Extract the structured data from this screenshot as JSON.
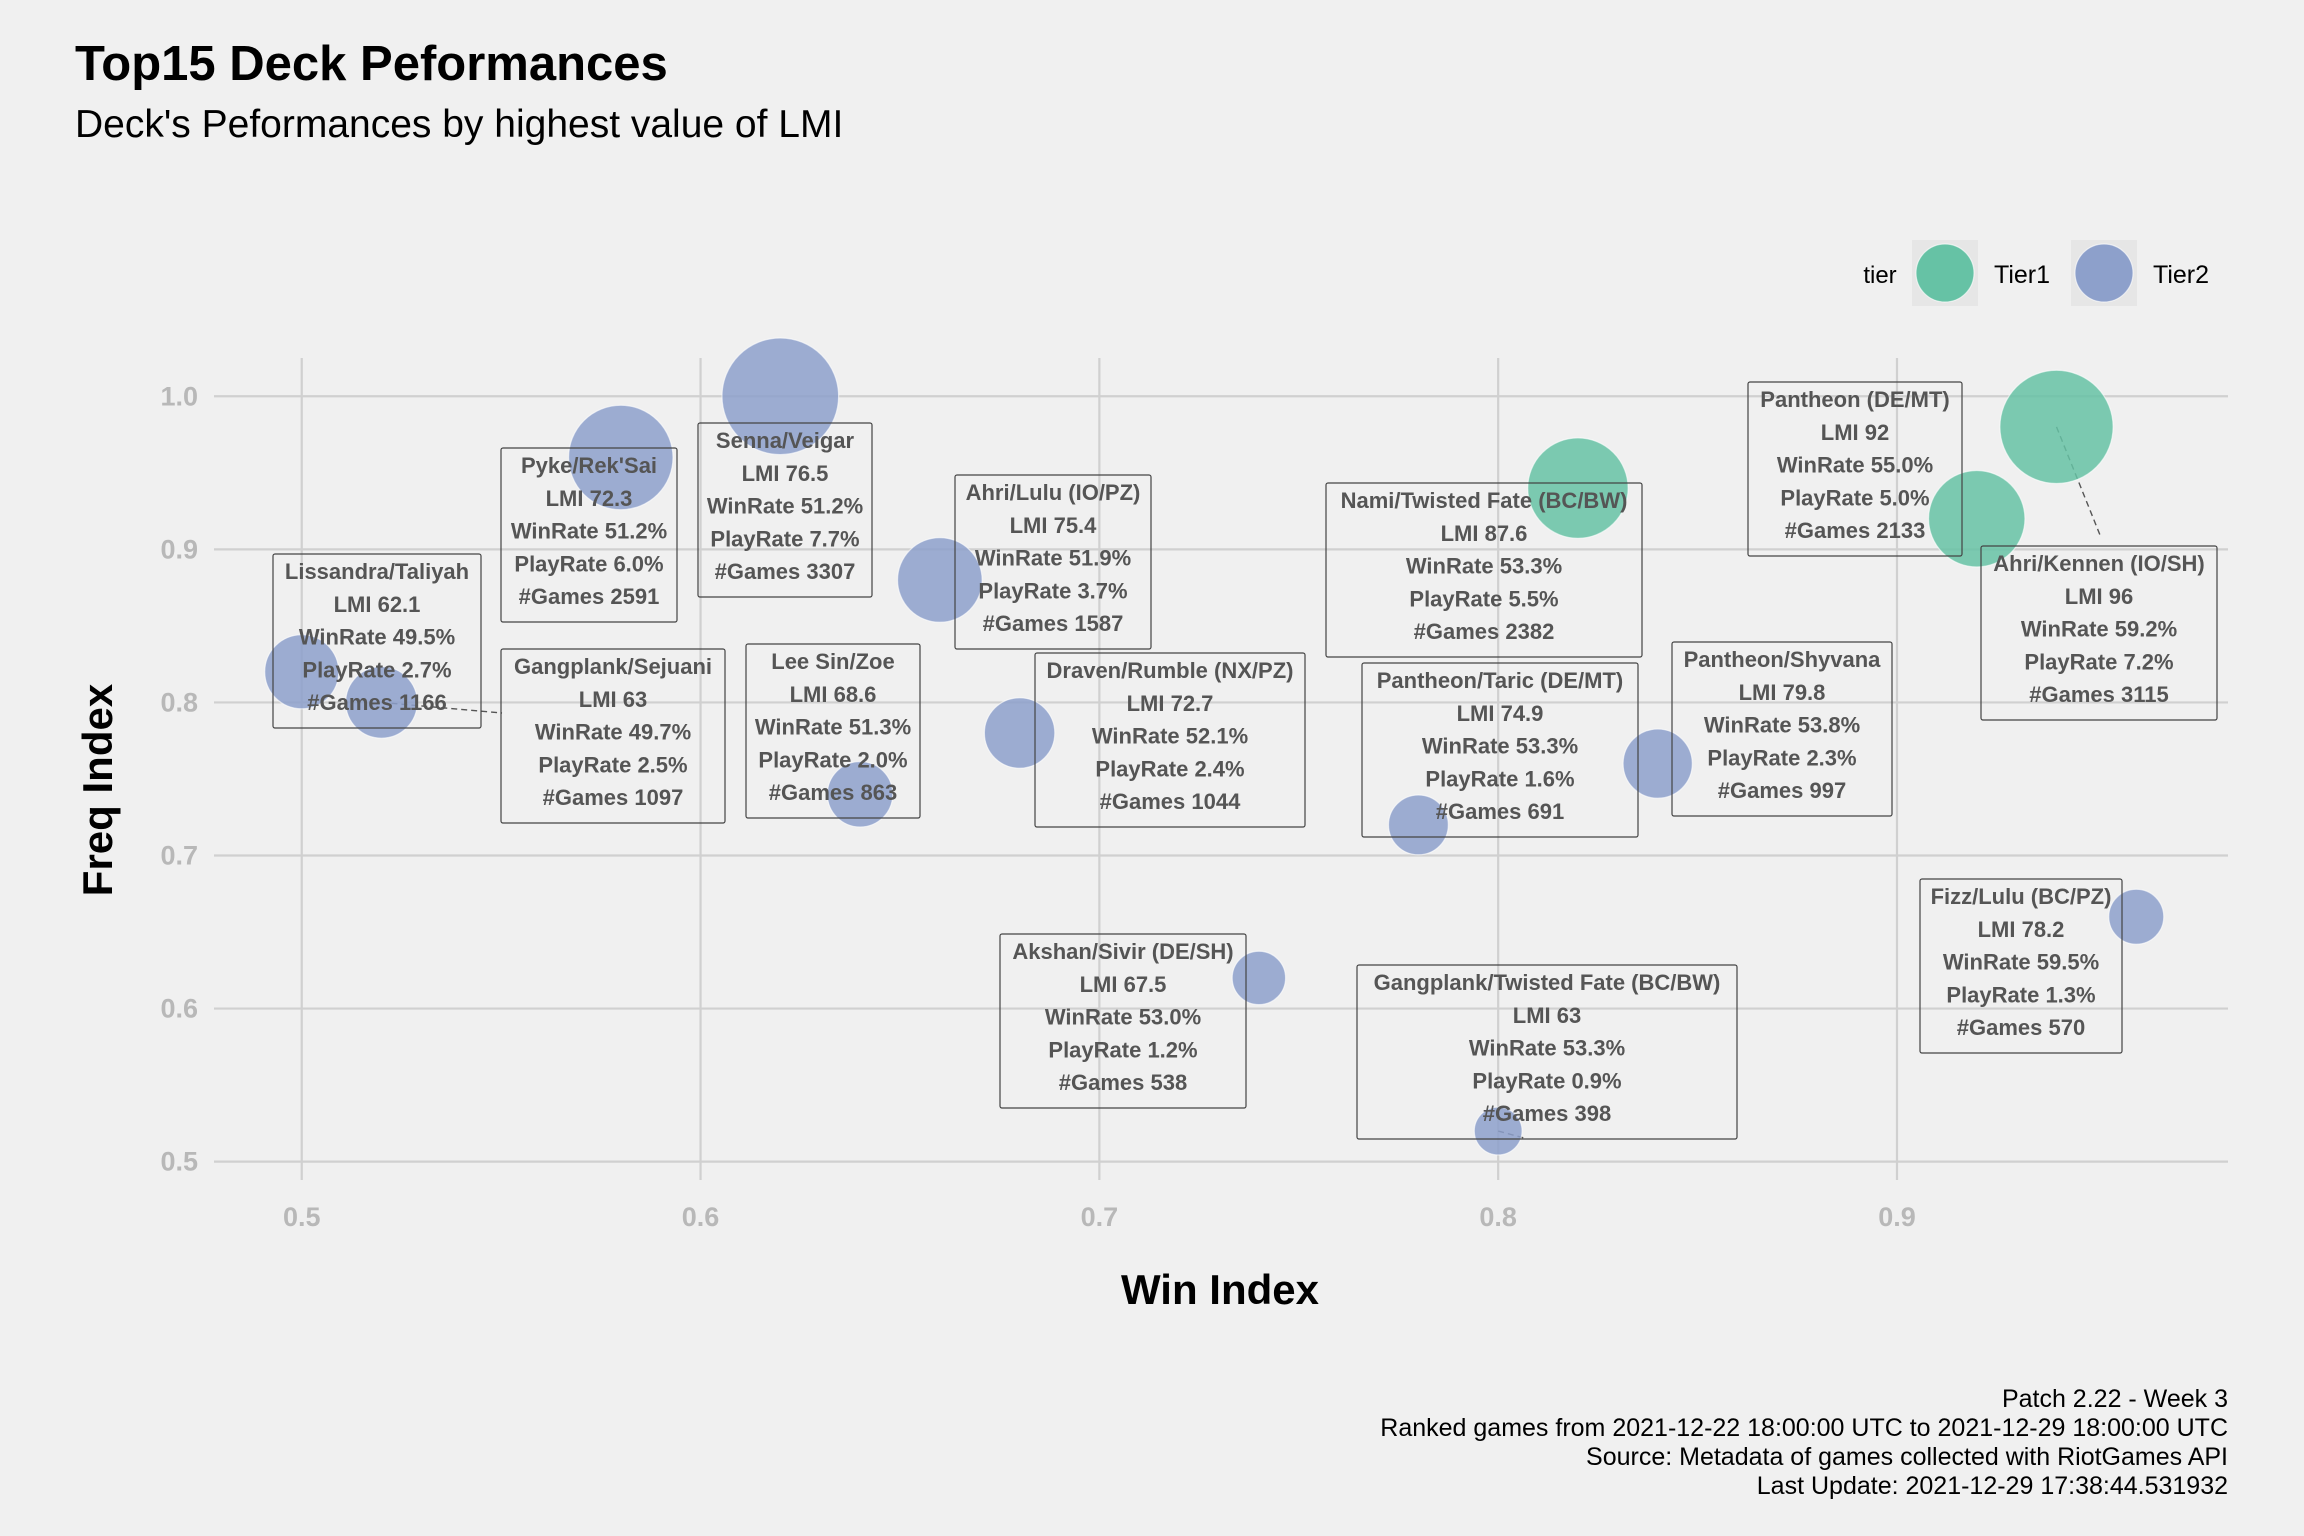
{
  "chart_data": {
    "type": "scatter",
    "title": "Top15 Deck Peformances",
    "subtitle": "Deck's Peformances by highest value of LMI",
    "xlabel": "Win Index",
    "ylabel": "Freq Index",
    "xlim": [
      0.478,
      0.983
    ],
    "ylim": [
      0.488,
      1.025
    ],
    "x_ticks": [
      "0.5",
      "0.6",
      "0.7",
      "0.8",
      "0.9"
    ],
    "y_ticks": [
      "0.5",
      "0.6",
      "0.7",
      "0.8",
      "0.9",
      "1.0"
    ],
    "grid": true,
    "legend": {
      "title": "tier",
      "position": "top-right",
      "entries": [
        {
          "label": "Tier1",
          "color": "#66c2a5"
        },
        {
          "label": "Tier2",
          "color": "#8da0cb"
        }
      ]
    },
    "caption": [
      "Patch 2.22 - Week 3",
      "Ranked games from 2021-12-22 18:00:00 UTC to 2021-12-29 18:00:00 UTC",
      "Source: Metadata of games collected with RiotGames API",
      "Last Update: 2021-12-29 17:38:44.531932"
    ],
    "points": [
      {
        "deck": "Ahri/Kennen (IO/SH)",
        "x": 0.94,
        "y": 0.98,
        "tier": "Tier1",
        "lines": [
          "Ahri/Kennen (IO/SH)",
          "LMI 96",
          "WinRate 59.2%",
          "PlayRate 7.2%",
          "#Games 3115"
        ]
      },
      {
        "deck": "Pantheon (DE/MT)",
        "x": 0.92,
        "y": 0.92,
        "tier": "Tier1",
        "lines": [
          "Pantheon (DE/MT)",
          "LMI 92",
          "WinRate 55.0%",
          "PlayRate 5.0%",
          "#Games 2133"
        ]
      },
      {
        "deck": "Nami/Twisted Fate (BC/BW)",
        "x": 0.82,
        "y": 0.94,
        "tier": "Tier1",
        "lines": [
          "Nami/Twisted Fate (BC/BW)",
          "LMI 87.6",
          "WinRate 53.3%",
          "PlayRate 5.5%",
          "#Games 2382"
        ]
      },
      {
        "deck": "Pantheon/Shyvana",
        "x": 0.84,
        "y": 0.76,
        "tier": "Tier2",
        "lines": [
          "Pantheon/Shyvana",
          "LMI 79.8",
          "WinRate 53.8%",
          "PlayRate 2.3%",
          "#Games 997"
        ]
      },
      {
        "deck": "Fizz/Lulu (BC/PZ)",
        "x": 0.96,
        "y": 0.66,
        "tier": "Tier2",
        "lines": [
          "Fizz/Lulu (BC/PZ)",
          "LMI 78.2",
          "WinRate 59.5%",
          "PlayRate 1.3%",
          "#Games 570"
        ]
      },
      {
        "deck": "Senna/Veigar",
        "x": 0.62,
        "y": 1.0,
        "tier": "Tier2",
        "lines": [
          "Senna/Veigar",
          "LMI 76.5",
          "WinRate 51.2%",
          "PlayRate 7.7%",
          "#Games 3307"
        ]
      },
      {
        "deck": "Ahri/Lulu (IO/PZ)",
        "x": 0.66,
        "y": 0.88,
        "tier": "Tier2",
        "lines": [
          "Ahri/Lulu (IO/PZ)",
          "LMI 75.4",
          "WinRate 51.9%",
          "PlayRate 3.7%",
          "#Games 1587"
        ]
      },
      {
        "deck": "Pantheon/Taric (DE/MT)",
        "x": 0.78,
        "y": 0.72,
        "tier": "Tier2",
        "lines": [
          "Pantheon/Taric (DE/MT)",
          "LMI 74.9",
          "WinRate 53.3%",
          "PlayRate 1.6%",
          "#Games 691"
        ]
      },
      {
        "deck": "Draven/Rumble (NX/PZ)",
        "x": 0.68,
        "y": 0.78,
        "tier": "Tier2",
        "lines": [
          "Draven/Rumble (NX/PZ)",
          "LMI 72.7",
          "WinRate 52.1%",
          "PlayRate 2.4%",
          "#Games 1044"
        ]
      },
      {
        "deck": "Pyke/Rek'Sai",
        "x": 0.58,
        "y": 0.96,
        "tier": "Tier2",
        "lines": [
          "Pyke/Rek'Sai",
          "LMI 72.3",
          "WinRate 51.2%",
          "PlayRate 6.0%",
          "#Games 2591"
        ]
      },
      {
        "deck": "Lee Sin/Zoe",
        "x": 0.64,
        "y": 0.74,
        "tier": "Tier2",
        "lines": [
          "Lee Sin/Zoe",
          "LMI 68.6",
          "WinRate 51.3%",
          "PlayRate 2.0%",
          "#Games 863"
        ]
      },
      {
        "deck": "Akshan/Sivir (DE/SH)",
        "x": 0.74,
        "y": 0.62,
        "tier": "Tier2",
        "lines": [
          "Akshan/Sivir (DE/SH)",
          "LMI 67.5",
          "WinRate 53.0%",
          "PlayRate 1.2%",
          "#Games 538"
        ]
      },
      {
        "deck": "Gangplank/Sejuani",
        "x": 0.52,
        "y": 0.8,
        "tier": "Tier2",
        "lines": [
          "Gangplank/Sejuani",
          "LMI 63",
          "WinRate 49.7%",
          "PlayRate 2.5%",
          "#Games 1097"
        ]
      },
      {
        "deck": "Gangplank/Twisted Fate (BC/BW)",
        "x": 0.8,
        "y": 0.52,
        "tier": "Tier2",
        "lines": [
          "Gangplank/Twisted Fate (BC/BW)",
          "LMI 63",
          "WinRate 53.3%",
          "PlayRate 0.9%",
          "#Games 398"
        ]
      },
      {
        "deck": "Lissandra/Taliyah",
        "x": 0.5,
        "y": 0.82,
        "tier": "Tier2",
        "lines": [
          "Lissandra/Taliyah",
          "LMI 62.1",
          "WinRate 49.5%",
          "PlayRate 2.7%",
          "#Games 1166"
        ]
      }
    ]
  }
}
